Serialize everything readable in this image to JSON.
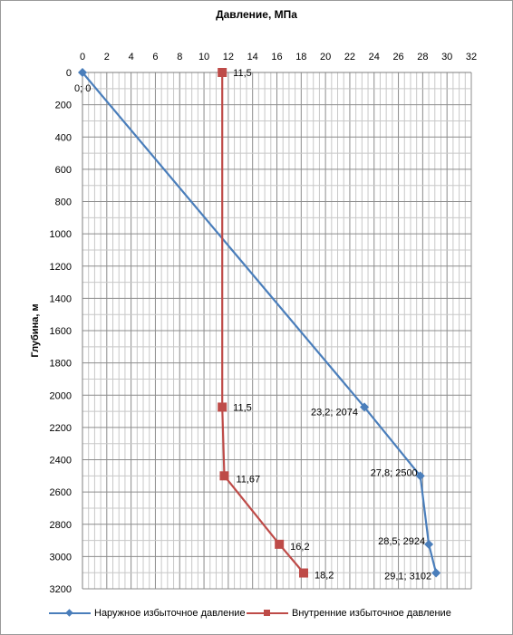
{
  "chart_data": {
    "type": "line",
    "title": "Давление, МПа",
    "xlabel": "",
    "ylabel": "Глубина, м",
    "xlim": [
      0,
      32
    ],
    "ylim": [
      0,
      3200
    ],
    "y_inverted": true,
    "x_ticks": [
      "0",
      "2",
      "4",
      "6",
      "8",
      "10",
      "12",
      "14",
      "16",
      "18",
      "20",
      "22",
      "24",
      "26",
      "28",
      "30",
      "32"
    ],
    "y_ticks": [
      "0",
      "200",
      "400",
      "600",
      "800",
      "1000",
      "1200",
      "1400",
      "1600",
      "1800",
      "2000",
      "2200",
      "2400",
      "2600",
      "2800",
      "3000",
      "3200"
    ],
    "grid": true,
    "legend_position": "bottom",
    "series": [
      {
        "name": "Наружное избыточное давление",
        "color": "#4a7ebb",
        "marker": "diamond",
        "points": [
          {
            "x": 0,
            "y": 0,
            "label": "0; 0"
          },
          {
            "x": 23.2,
            "y": 2074,
            "label": "23,2; 2074"
          },
          {
            "x": 27.8,
            "y": 2500,
            "label": "27,8; 2500"
          },
          {
            "x": 28.5,
            "y": 2924,
            "label": "28,5; 2924"
          },
          {
            "x": 29.1,
            "y": 3102,
            "label": "29,1; 3102"
          }
        ]
      },
      {
        "name": "Внутренние избыточное давление",
        "color": "#be4b48",
        "marker": "square",
        "points": [
          {
            "x": 11.5,
            "y": 0,
            "label": "11,5"
          },
          {
            "x": 11.5,
            "y": 2074,
            "label": "11,5"
          },
          {
            "x": 11.67,
            "y": 2500,
            "label": "11,67"
          },
          {
            "x": 16.2,
            "y": 2924,
            "label": "16,2"
          },
          {
            "x": 18.2,
            "y": 3102,
            "label": "18,2"
          }
        ]
      }
    ]
  }
}
